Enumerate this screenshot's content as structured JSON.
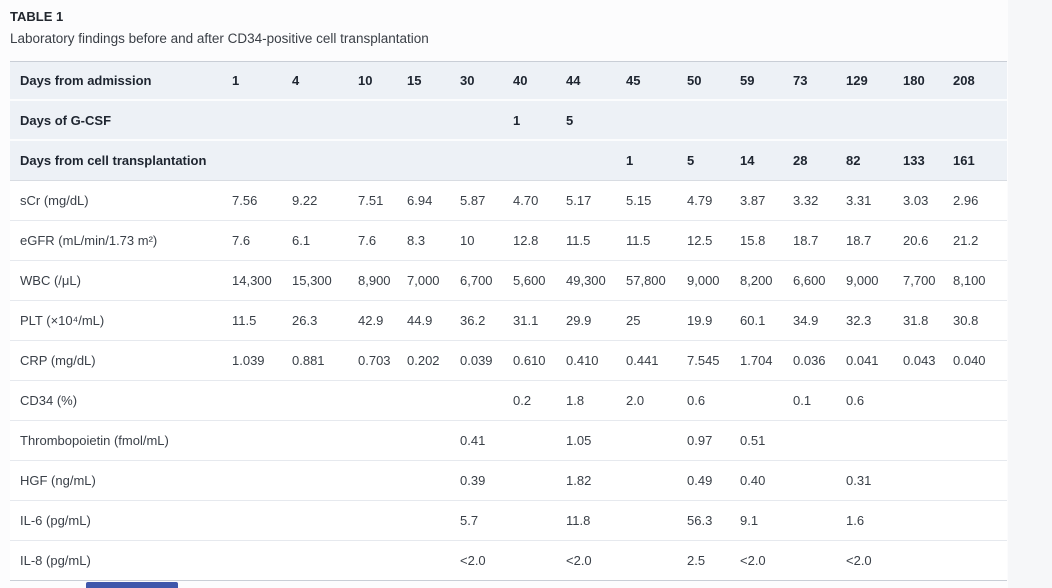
{
  "table": {
    "title": "TABLE 1",
    "caption": "Laboratory findings before and after CD34-positive cell transplantation",
    "header_rows": [
      {
        "label": "Days from admission",
        "values": [
          "1",
          "4",
          "10",
          "15",
          "30",
          "40",
          "44",
          "45",
          "50",
          "59",
          "73",
          "129",
          "180",
          "208"
        ]
      },
      {
        "label": "Days of G-CSF",
        "values": [
          "",
          "",
          "",
          "",
          "",
          "1",
          "5",
          "",
          "",
          "",
          "",
          "",
          "",
          ""
        ]
      },
      {
        "label": "Days from cell transplantation",
        "values": [
          "",
          "",
          "",
          "",
          "",
          "",
          "",
          "1",
          "5",
          "14",
          "28",
          "82",
          "133",
          "161"
        ]
      }
    ],
    "rows": [
      {
        "label": "sCr (mg/dL)",
        "values": [
          "7.56",
          "9.22",
          "7.51",
          "6.94",
          "5.87",
          "4.70",
          "5.17",
          "5.15",
          "4.79",
          "3.87",
          "3.32",
          "3.31",
          "3.03",
          "2.96"
        ]
      },
      {
        "label": "eGFR (mL/min/1.73 m²)",
        "values": [
          "7.6",
          "6.1",
          "7.6",
          "8.3",
          "10",
          "12.8",
          "11.5",
          "11.5",
          "12.5",
          "15.8",
          "18.7",
          "18.7",
          "20.6",
          "21.2"
        ]
      },
      {
        "label": "WBC (/μL)",
        "values": [
          "14,300",
          "15,300",
          "8,900",
          "7,000",
          "6,700",
          "5,600",
          "49,300",
          "57,800",
          "9,000",
          "8,200",
          "6,600",
          "9,000",
          "7,700",
          "8,100"
        ]
      },
      {
        "label": "PLT (×10⁴/mL)",
        "values": [
          "11.5",
          "26.3",
          "42.9",
          "44.9",
          "36.2",
          "31.1",
          "29.9",
          "25",
          "19.9",
          "60.1",
          "34.9",
          "32.3",
          "31.8",
          "30.8"
        ]
      },
      {
        "label": "CRP (mg/dL)",
        "values": [
          "1.039",
          "0.881",
          "0.703",
          "0.202",
          "0.039",
          "0.610",
          "0.410",
          "0.441",
          "7.545",
          "1.704",
          "0.036",
          "0.041",
          "0.043",
          "0.040"
        ]
      },
      {
        "label": "CD34 (%)",
        "values": [
          "",
          "",
          "",
          "",
          "",
          "0.2",
          "1.8",
          "2.0",
          "0.6",
          "",
          "0.1",
          "0.6",
          "",
          ""
        ]
      },
      {
        "label": "Thrombopoietin (fmol/mL)",
        "values": [
          "",
          "",
          "",
          "",
          "0.41",
          "",
          "1.05",
          "",
          "0.97",
          "0.51",
          "",
          "",
          "",
          ""
        ]
      },
      {
        "label": "HGF (ng/mL)",
        "values": [
          "",
          "",
          "",
          "",
          "0.39",
          "",
          "1.82",
          "",
          "0.49",
          "0.40",
          "",
          "0.31",
          "",
          ""
        ]
      },
      {
        "label": "IL-6 (pg/mL)",
        "values": [
          "",
          "",
          "",
          "",
          "5.7",
          "",
          "11.8",
          "",
          "56.3",
          "9.1",
          "",
          "1.6",
          "",
          ""
        ]
      },
      {
        "label": "IL-8 (pg/mL)",
        "values": [
          "",
          "",
          "",
          "",
          "<2.0",
          "",
          "<2.0",
          "",
          "2.5",
          "<2.0",
          "",
          "<2.0",
          "",
          ""
        ]
      }
    ]
  },
  "colors": {
    "header_row_bg": "#edf1f6",
    "data_row_bg": "#ffffff",
    "outer_border": "#c9ced6",
    "row_divider": "#e6e9ee",
    "partial_element_blue": "#3f57ab"
  }
}
